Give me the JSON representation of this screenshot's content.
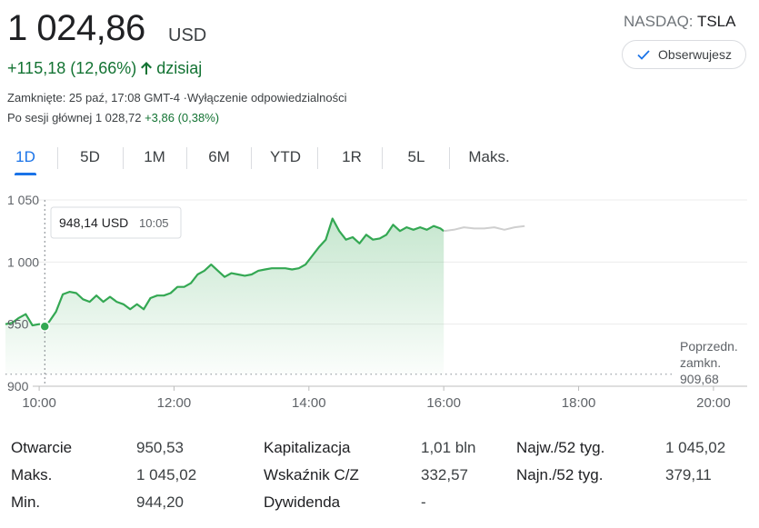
{
  "quote": {
    "price": "1 024,86",
    "currency": "USD",
    "exchange": "NASDAQ:",
    "symbol": "TSLA",
    "follow_label": "Obserwujesz",
    "change": "+115,18 (12,66%)",
    "change_period": "dzisiaj",
    "closed_text": "Zamknięte: 25 paź, 17:08 GMT-4 ·",
    "disclaimer_link": "Wyłączenie odpowiedzialności",
    "after_hours_prefix": "Po sesji głównej 1 028,72",
    "after_hours_change": "+3,86 (0,38%)"
  },
  "tabs": [
    "1D",
    "5D",
    "1M",
    "6M",
    "YTD",
    "1R",
    "5L",
    "Maks."
  ],
  "active_tab": "1D",
  "colors": {
    "up": "#137333",
    "line": "#34a853",
    "accent": "#1a73e8",
    "after_hours_line": "#cfcfcf"
  },
  "icons": {
    "follow": "check-icon",
    "direction": "arrow-up-icon"
  },
  "chart_data": {
    "type": "line",
    "x_unit": "hour",
    "ylim": [
      900,
      1050
    ],
    "xlim": [
      9.5,
      20.5
    ],
    "y_ticks": [
      {
        "value": 1050,
        "label": "1 050"
      },
      {
        "value": 1000,
        "label": "1 000"
      },
      {
        "value": 950,
        "label": "950"
      },
      {
        "value": 900,
        "label": "900"
      }
    ],
    "x_ticks": [
      {
        "value": 10,
        "label": "10:00"
      },
      {
        "value": 12,
        "label": "12:00"
      },
      {
        "value": 14,
        "label": "14:00"
      },
      {
        "value": 16,
        "label": "16:00"
      },
      {
        "value": 18,
        "label": "18:00"
      },
      {
        "value": 20,
        "label": "20:00"
      }
    ],
    "series": [
      {
        "role": "regular-session",
        "x": [
          9.5,
          9.6,
          9.7,
          9.8,
          9.9,
          10.0,
          10.083,
          10.15,
          10.25,
          10.35,
          10.45,
          10.55,
          10.65,
          10.75,
          10.85,
          10.95,
          11.05,
          11.15,
          11.25,
          11.35,
          11.45,
          11.55,
          11.65,
          11.75,
          11.85,
          11.95,
          12.05,
          12.15,
          12.25,
          12.35,
          12.45,
          12.55,
          12.65,
          12.75,
          12.85,
          12.95,
          13.05,
          13.15,
          13.25,
          13.35,
          13.45,
          13.55,
          13.65,
          13.75,
          13.85,
          13.95,
          14.05,
          14.15,
          14.25,
          14.35,
          14.45,
          14.55,
          14.65,
          14.75,
          14.85,
          14.95,
          15.05,
          15.15,
          15.25,
          15.35,
          15.45,
          15.55,
          15.65,
          15.75,
          15.85,
          15.95,
          16.0
        ],
        "y": [
          950,
          951,
          955,
          958,
          949,
          950,
          948.14,
          952,
          960,
          974,
          976,
          975,
          970,
          968,
          973,
          968,
          972,
          968,
          966,
          962,
          966,
          962,
          971,
          973,
          973,
          975,
          980,
          980,
          983,
          990,
          993,
          998,
          993,
          988,
          991,
          990,
          989,
          990,
          993,
          994,
          995,
          995,
          995,
          994,
          995,
          998,
          1005,
          1012,
          1018,
          1035,
          1025,
          1018,
          1020,
          1015,
          1022,
          1018,
          1019,
          1022,
          1030,
          1025,
          1028,
          1026,
          1028,
          1026,
          1029,
          1027,
          1025
        ]
      },
      {
        "role": "after-hours",
        "x": [
          16.0,
          16.15,
          16.3,
          16.45,
          16.6,
          16.75,
          16.9,
          17.05,
          17.2
        ],
        "y": [
          1025,
          1026,
          1028,
          1027,
          1027,
          1028,
          1026,
          1028,
          1029
        ]
      }
    ],
    "previous_close": {
      "value": 909.68,
      "label": "Poprzedn.\nzamkn.\n909,68"
    },
    "tooltip": {
      "x": 10.083,
      "y": 948.14,
      "value": "948,14 USD",
      "time": "10:05"
    }
  },
  "stats": [
    {
      "label": "Otwarcie",
      "value": "950,53"
    },
    {
      "label": "Maks.",
      "value": "1 045,02"
    },
    {
      "label": "Min.",
      "value": "944,20"
    },
    {
      "label": "Kapitalizacja",
      "value": "1,01 bln"
    },
    {
      "label": "Wskaźnik C/Z",
      "value": "332,57"
    },
    {
      "label": "Dywidenda",
      "value": "-"
    },
    {
      "label": "Najw./52 tyg.",
      "value": "1 045,02"
    },
    {
      "label": "Najn./52 tyg.",
      "value": "379,11"
    }
  ]
}
